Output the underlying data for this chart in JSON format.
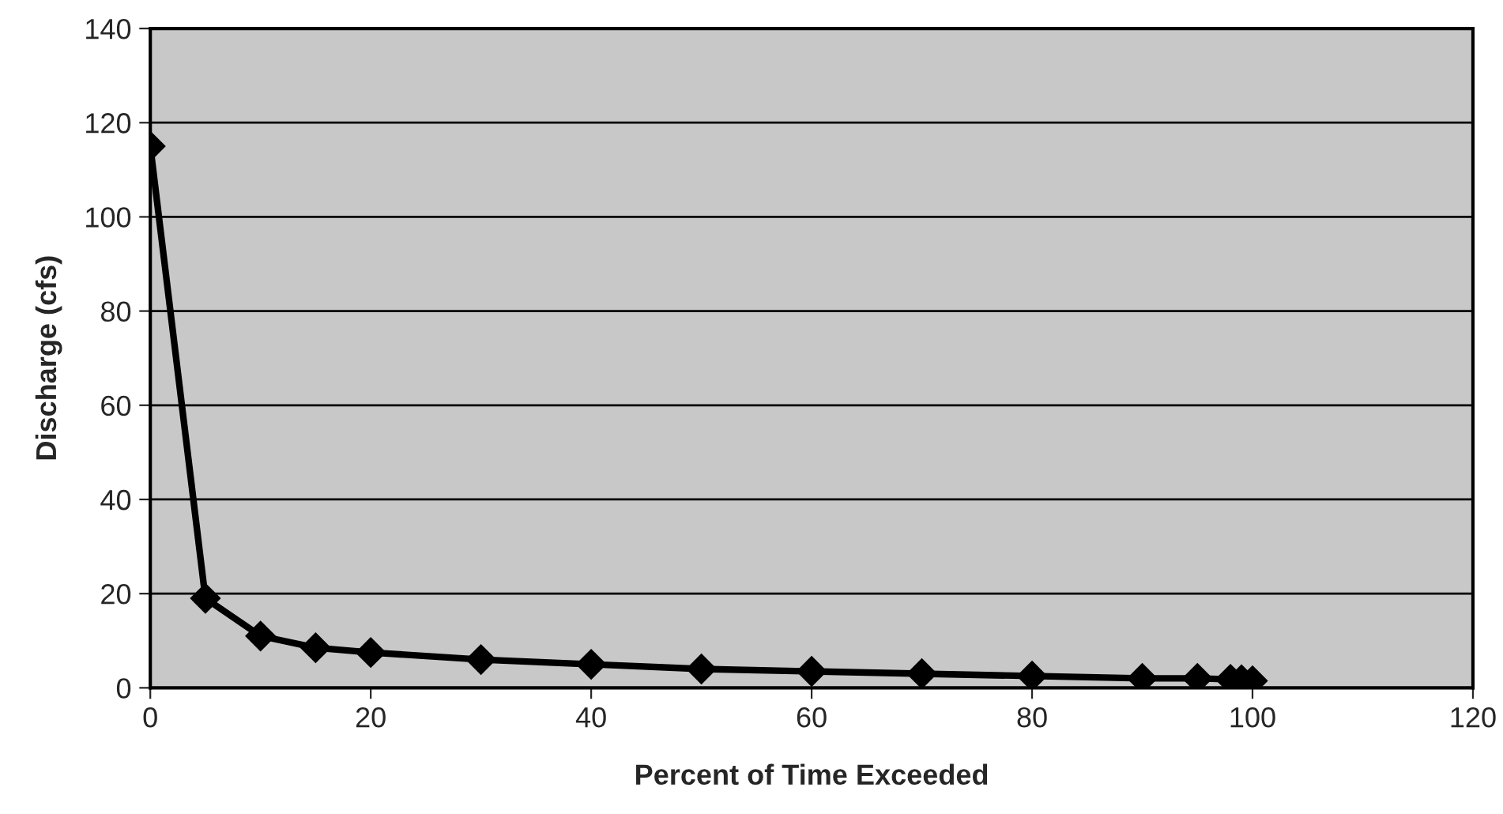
{
  "chart_data": {
    "type": "line",
    "xlabel": "Percent of Time Exceeded",
    "ylabel": "Discharge (cfs)",
    "x": [
      0,
      5,
      10,
      15,
      20,
      30,
      40,
      50,
      60,
      70,
      80,
      90,
      95,
      98,
      99,
      100
    ],
    "series": [
      {
        "color": "#000000",
        "values": [
          115,
          19,
          11,
          8.5,
          7.5,
          6,
          5,
          4,
          3.5,
          3,
          2.5,
          2,
          2,
          1.8,
          1.7,
          1.5
        ]
      }
    ],
    "xlim": [
      0,
      120
    ],
    "xticks": [
      0,
      20,
      40,
      60,
      80,
      100,
      120
    ],
    "ylim": [
      0,
      140
    ],
    "yticks": [
      0,
      20,
      40,
      60,
      80,
      100,
      120,
      140
    ],
    "grid": "y",
    "marker": "diamond",
    "line_style": "solid"
  }
}
